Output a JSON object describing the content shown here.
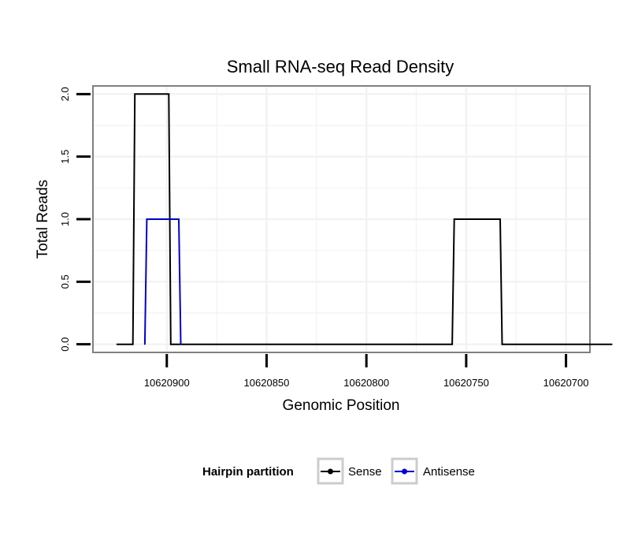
{
  "chart_data": {
    "type": "line",
    "title": "Small RNA-seq Read Density",
    "xlabel": "Genomic Position",
    "ylabel": "Total Reads",
    "xlim": [
      10620937,
      10620688
    ],
    "ylim": [
      -0.065,
      2.065
    ],
    "x_reversed": true,
    "x_ticks": [
      10620900,
      10620850,
      10620800,
      10620750,
      10620700
    ],
    "x_tick_labels": [
      "10620900",
      "10620850",
      "10620800",
      "10620750",
      "10620700"
    ],
    "y_ticks": [
      0,
      0.5,
      1,
      1.5,
      2
    ],
    "y_tick_labels": [
      "0.0",
      "0.5",
      "1.0",
      "1.5",
      "2.0"
    ],
    "grid": true,
    "legend": {
      "title": "Hairpin partition",
      "position": "bottom",
      "entries": [
        "Sense",
        "Antisense"
      ]
    },
    "series": [
      {
        "name": "Sense",
        "color": "#000000",
        "x": [
          10620925,
          10620917,
          10620916,
          10620899,
          10620898,
          10620757,
          10620756,
          10620733,
          10620732,
          10620677
        ],
        "values": [
          0,
          0,
          2,
          2,
          0,
          0,
          1,
          1,
          0,
          0
        ]
      },
      {
        "name": "Antisense",
        "color": "#0000cc",
        "x": [
          10620911,
          10620910,
          10620894,
          10620893
        ],
        "values": [
          0,
          1,
          1,
          0
        ]
      }
    ]
  }
}
